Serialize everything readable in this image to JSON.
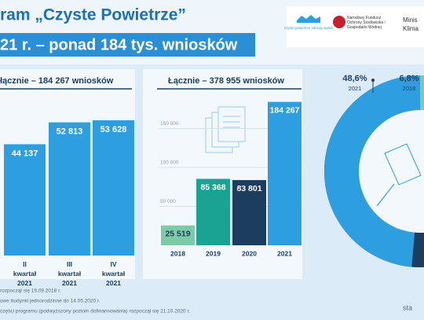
{
  "header": {
    "title": "ram „Czyste Powietrze”",
    "subtitle": "21 r. – ponad 184 tys. wniosków",
    "logos": [
      "czyste powietrze zdrowy wybór",
      "Narodowy Fundusz Ochrony Środowiska i Gospodarki Wodnej",
      "Minis",
      "Klima"
    ]
  },
  "chart_data": [
    {
      "type": "bar",
      "title": "łącznie – 184 267 wniosków",
      "categories": [
        "II\nkwartał\n2021",
        "III\nkwartał\n2021",
        "IV\nkwartał\n2021"
      ],
      "values": [
        44137,
        52813,
        53628
      ],
      "value_labels": [
        "44 137",
        "52 813",
        "53 628"
      ],
      "color": "#2d9fe0"
    },
    {
      "type": "bar",
      "title": "Łącznie – 378 955 wniosków",
      "categories": [
        "2018",
        "2019",
        "2020",
        "2021"
      ],
      "values": [
        25519,
        85368,
        83801,
        184267
      ],
      "value_labels": [
        "25 519",
        "85 368",
        "83 801",
        "184 267"
      ],
      "colors": [
        "#7dcaa6",
        "#1aa393",
        "#1d3d5e",
        "#2d9fe0"
      ],
      "ylim": [
        0,
        200000
      ],
      "yticks": [
        {
          "value": 50000,
          "label": "50 000"
        },
        {
          "value": 100000,
          "label": "100 000"
        },
        {
          "value": 150000,
          "label": "150 000"
        }
      ],
      "grid": true
    },
    {
      "type": "pie",
      "categories": [
        "2021",
        "2018"
      ],
      "values": [
        48.6,
        6.8
      ],
      "value_labels": [
        "48,6%",
        "6,8%"
      ],
      "colors": [
        "#2d9fe0",
        "#7dcaa6"
      ]
    }
  ],
  "footnotes": [
    "rozpoczął się 19.09.2018 r.",
    "owe budynki jednorodzinne do 14.05.2020 r.",
    "części programu (podwyższony poziom dofinansowania) rozpoczął się 21.10.2020 r."
  ],
  "source": "sta"
}
